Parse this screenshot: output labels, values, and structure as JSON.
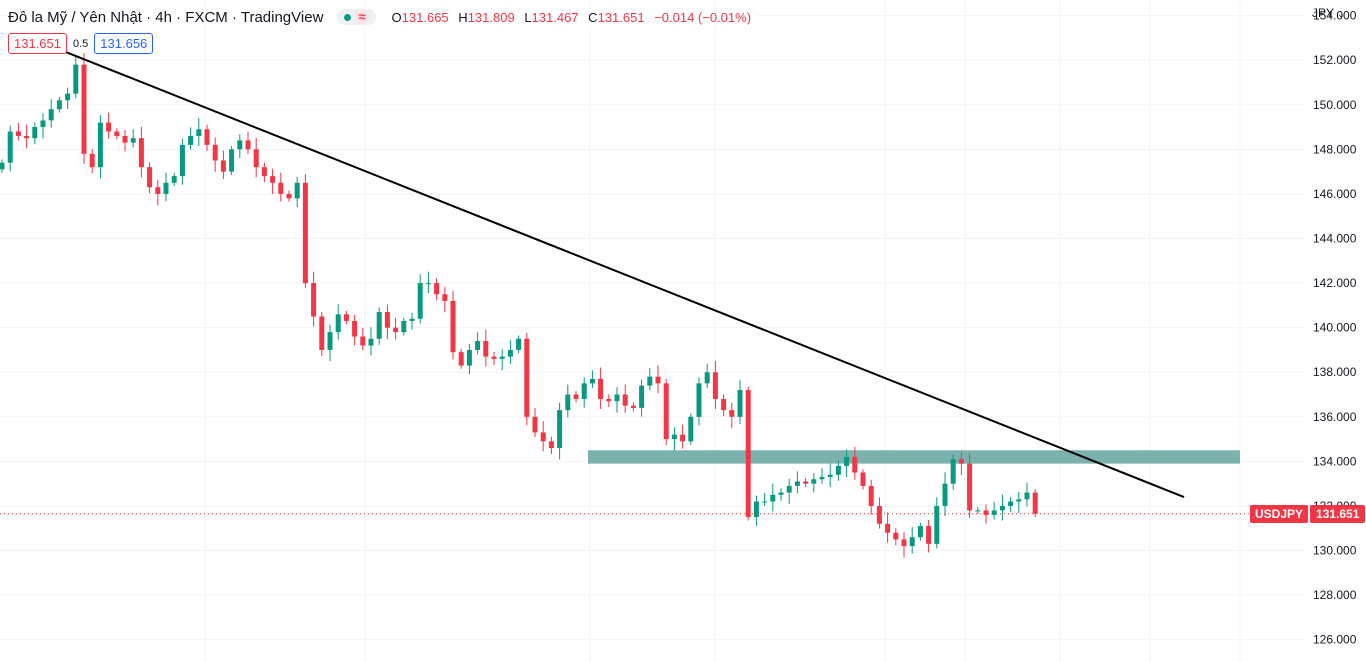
{
  "header": {
    "title": "Đô la Mỹ / Yên Nhật · 4h · FXCM · TradingView",
    "approx_symbol": "≈",
    "ohlc": [
      {
        "label": "O",
        "value": "131.665"
      },
      {
        "label": "H",
        "value": "131.809"
      },
      {
        "label": "L",
        "value": "131.467"
      },
      {
        "label": "C",
        "value": "131.651"
      }
    ],
    "change": "−0.014 (−0.01%)",
    "bid": "131.651",
    "spread": "0.5",
    "ask": "131.656"
  },
  "axis": {
    "currency": "JPY",
    "ticks": [
      "154.000",
      "152.000",
      "150.000",
      "148.000",
      "146.000",
      "144.000",
      "142.000",
      "140.000",
      "138.000",
      "136.000",
      "134.000",
      "132.000",
      "130.000",
      "128.000",
      "126.000"
    ]
  },
  "price_tag": {
    "symbol": "USDJPY",
    "value": "131.651"
  },
  "colors": {
    "up": "#089981",
    "down": "#f23645",
    "zone": "#5b9f99",
    "trendline": "#000000"
  },
  "icons": {
    "status": "market-open-dot-icon",
    "delay": "approx-icon",
    "dropdown": "chevron-down-icon"
  },
  "chart_data": {
    "type": "candlestick",
    "ylim": [
      125,
      154.7
    ],
    "last_price": 131.651,
    "grid": true,
    "series": [
      {
        "name": "USDJPY",
        "close": [
          147.4,
          148.8,
          148.6,
          148.5,
          149.0,
          149.3,
          149.8,
          150.2,
          150.5,
          151.8,
          147.8,
          147.2,
          149.2,
          148.8,
          148.6,
          148.3,
          148.5,
          147.2,
          146.3,
          146.0,
          146.5,
          146.8,
          148.2,
          148.6,
          148.9,
          148.2,
          147.5,
          147.0,
          148.0,
          148.4,
          148.0,
          147.2,
          146.8,
          146.5,
          146.0,
          145.8,
          146.5,
          142.0,
          140.5,
          139.0,
          139.8,
          140.6,
          140.3,
          139.6,
          139.2,
          139.5,
          140.7,
          140.0,
          139.8,
          140.3,
          140.4,
          142.0,
          142.0,
          141.5,
          141.2,
          138.9,
          138.3,
          139.0,
          139.4,
          138.7,
          138.6,
          138.7,
          139.0,
          139.5,
          136.0,
          135.3,
          134.9,
          134.6,
          136.3,
          137.0,
          136.8,
          137.5,
          137.7,
          136.8,
          136.7,
          137.0,
          136.5,
          136.4,
          137.4,
          137.8,
          137.5,
          135.0,
          135.2,
          134.9,
          136.0,
          137.5,
          138.0,
          136.8,
          136.3,
          136.0,
          137.2,
          131.5,
          132.2,
          132.2,
          132.5,
          132.6,
          132.9,
          133.1,
          133.0,
          133.2,
          133.3,
          133.4,
          133.8,
          134.2,
          133.5,
          132.9,
          132.0,
          131.2,
          130.8,
          130.5,
          130.2,
          130.6,
          131.1,
          130.3,
          132.0,
          133.0,
          134.1,
          133.9,
          131.8,
          131.8,
          131.6,
          131.8,
          132.0,
          132.2,
          132.3,
          132.6,
          131.651
        ]
      }
    ],
    "annotations": [
      {
        "type": "trendline",
        "from": [
          0,
          152.4
        ],
        "to": [
          134,
          132.4
        ]
      },
      {
        "type": "zone",
        "from_index": 70,
        "to_index": 148,
        "y_top": 134.5,
        "y_bottom": 133.9
      }
    ]
  }
}
